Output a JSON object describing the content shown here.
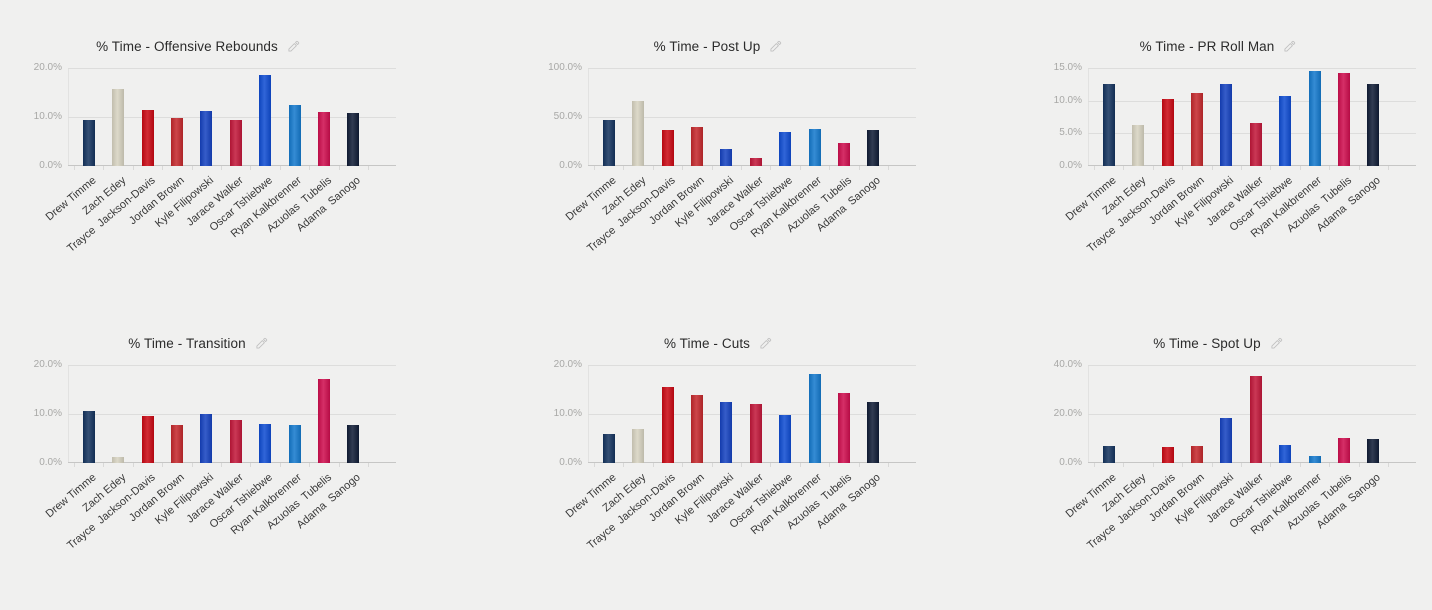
{
  "page": {
    "background": "#f0f0ef",
    "layout": "2x3 grid of bar charts, each with an edit pencil icon"
  },
  "icons": {
    "edit": "edit-pencil-icon",
    "edit_color": "#c0c0c0"
  },
  "chart_data": [
    {
      "type": "bar",
      "title": "% Time - Offensive Rebounds",
      "ylim": [
        0,
        20
      ],
      "yticks": [
        {
          "label": "0.0%",
          "value": 0
        },
        {
          "label": "10.0%",
          "value": 10
        },
        {
          "label": "20.0%",
          "value": 20
        }
      ],
      "categories": [
        "Drew Timme",
        "Zach Edey",
        "Trayce  Jackson-Davis",
        "Jordan Brown",
        "Kyle Filipowski",
        "Jarace Walker",
        "Oscar Tshiebwe",
        "Ryan Kalkbrenner",
        "Azuolas  Tubelis",
        "Adama  Sanogo"
      ],
      "colors": [
        "#14335e",
        "#d7d3c1",
        "#ca0813",
        "#c4282c",
        "#1542c0",
        "#c2173a",
        "#0f4cd2",
        "#1479cd",
        "#cf0d4e",
        "#101c36"
      ],
      "values": [
        9.3,
        15.7,
        11.5,
        9.8,
        11.2,
        9.3,
        18.6,
        12.4,
        11.1,
        10.9
      ]
    },
    {
      "type": "bar",
      "title": "% Time - Post Up",
      "ylim": [
        0,
        100
      ],
      "yticks": [
        {
          "label": "0.0%",
          "value": 0
        },
        {
          "label": "50.0%",
          "value": 50
        },
        {
          "label": "100.0%",
          "value": 100
        }
      ],
      "categories": [
        "Drew Timme",
        "Zach Edey",
        "Trayce  Jackson-Davis",
        "Jordan Brown",
        "Kyle Filipowski",
        "Jarace Walker",
        "Oscar Tshiebwe",
        "Ryan Kalkbrenner",
        "Azuolas  Tubelis",
        "Adama  Sanogo"
      ],
      "colors": [
        "#14335e",
        "#d7d3c1",
        "#ca0813",
        "#c4282c",
        "#1542c0",
        "#c2173a",
        "#0f4cd2",
        "#1479cd",
        "#cf0d4e",
        "#101c36"
      ],
      "values": [
        47,
        66,
        37,
        40,
        17,
        8,
        35,
        38,
        23,
        37
      ]
    },
    {
      "type": "bar",
      "title": "% Time - PR Roll Man",
      "ylim": [
        0,
        15
      ],
      "yticks": [
        {
          "label": "0.0%",
          "value": 0
        },
        {
          "label": "5.0%",
          "value": 5
        },
        {
          "label": "10.0%",
          "value": 10
        },
        {
          "label": "15.0%",
          "value": 15
        }
      ],
      "categories": [
        "Drew Timme",
        "Zach Edey",
        "Trayce  Jackson-Davis",
        "Jordan Brown",
        "Kyle Filipowski",
        "Jarace Walker",
        "Oscar Tshiebwe",
        "Ryan Kalkbrenner",
        "Azuolas  Tubelis",
        "Adama  Sanogo"
      ],
      "colors": [
        "#14335e",
        "#d7d3c1",
        "#ca0813",
        "#c4282c",
        "#1542c0",
        "#c2173a",
        "#0f4cd2",
        "#1479cd",
        "#cf0d4e",
        "#101c36"
      ],
      "values": [
        12.5,
        6.3,
        10.2,
        11.1,
        12.6,
        6.6,
        10.7,
        14.6,
        14.2,
        12.6
      ]
    },
    {
      "type": "bar",
      "title": "% Time - Transition",
      "ylim": [
        0,
        20
      ],
      "yticks": [
        {
          "label": "0.0%",
          "value": 0
        },
        {
          "label": "10.0%",
          "value": 10
        },
        {
          "label": "20.0%",
          "value": 20
        }
      ],
      "categories": [
        "Drew Timme",
        "Zach Edey",
        "Trayce  Jackson-Davis",
        "Jordan Brown",
        "Kyle Filipowski",
        "Jarace Walker",
        "Oscar Tshiebwe",
        "Ryan Kalkbrenner",
        "Azuolas  Tubelis",
        "Adama  Sanogo"
      ],
      "colors": [
        "#14335e",
        "#d7d3c1",
        "#ca0813",
        "#c4282c",
        "#1542c0",
        "#c2173a",
        "#0f4cd2",
        "#1479cd",
        "#cf0d4e",
        "#101c36"
      ],
      "values": [
        10.7,
        1.2,
        9.5,
        7.8,
        10.1,
        8.7,
        7.9,
        7.7,
        17.2,
        7.7
      ]
    },
    {
      "type": "bar",
      "title": "% Time - Cuts",
      "ylim": [
        0,
        20
      ],
      "yticks": [
        {
          "label": "0.0%",
          "value": 0
        },
        {
          "label": "10.0%",
          "value": 10
        },
        {
          "label": "20.0%",
          "value": 20
        }
      ],
      "categories": [
        "Drew Timme",
        "Zach Edey",
        "Trayce  Jackson-Davis",
        "Jordan Brown",
        "Kyle Filipowski",
        "Jarace Walker",
        "Oscar Tshiebwe",
        "Ryan Kalkbrenner",
        "Azuolas  Tubelis",
        "Adama  Sanogo"
      ],
      "colors": [
        "#14335e",
        "#d7d3c1",
        "#ca0813",
        "#c4282c",
        "#1542c0",
        "#c2173a",
        "#0f4cd2",
        "#1479cd",
        "#cf0d4e",
        "#101c36"
      ],
      "values": [
        5.9,
        6.9,
        15.5,
        13.9,
        12.5,
        12.1,
        9.7,
        18.2,
        14.3,
        12.5
      ]
    },
    {
      "type": "bar",
      "title": "% Time - Spot Up",
      "ylim": [
        0,
        40
      ],
      "yticks": [
        {
          "label": "0.0%",
          "value": 0
        },
        {
          "label": "20.0%",
          "value": 20
        },
        {
          "label": "40.0%",
          "value": 40
        }
      ],
      "categories": [
        "Drew Timme",
        "Zach Edey",
        "Trayce  Jackson-Davis",
        "Jordan Brown",
        "Kyle Filipowski",
        "Jarace Walker",
        "Oscar Tshiebwe",
        "Ryan Kalkbrenner",
        "Azuolas  Tubelis",
        "Adama  Sanogo"
      ],
      "colors": [
        "#14335e",
        "#d7d3c1",
        "#ca0813",
        "#c4282c",
        "#1542c0",
        "#c2173a",
        "#0f4cd2",
        "#1479cd",
        "#cf0d4e",
        "#101c36"
      ],
      "values": [
        6.9,
        0,
        6.5,
        6.8,
        18.5,
        35.5,
        7.3,
        2.8,
        10.0,
        9.6
      ]
    }
  ]
}
